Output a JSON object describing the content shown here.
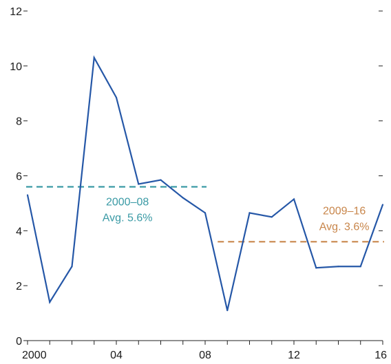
{
  "chart_data": {
    "type": "line",
    "title": "",
    "xlabel": "",
    "ylabel": "",
    "ylim": [
      0,
      12
    ],
    "xlim": [
      2000,
      2016
    ],
    "y_ticks": [
      0,
      2,
      4,
      6,
      8,
      10,
      12
    ],
    "y_tick_labels": [
      "0",
      "2",
      "4",
      "6",
      "8",
      "10",
      "12"
    ],
    "x_ticks": [
      2000,
      2004,
      2008,
      2012,
      2016
    ],
    "x_tick_labels": [
      "2000",
      "04",
      "08",
      "12",
      "16"
    ],
    "grid": false,
    "series": [
      {
        "x": [
          2000,
          2001,
          2002,
          2003,
          2004,
          2005,
          2006,
          2007,
          2008,
          2009,
          2010,
          2011,
          2012,
          2013,
          2014,
          2015,
          2016
        ],
        "values": [
          5.3,
          1.4,
          2.7,
          10.3,
          8.85,
          5.7,
          5.85,
          5.2,
          4.65,
          1.1,
          4.65,
          4.5,
          5.15,
          2.65,
          2.7,
          2.7,
          4.95
        ],
        "color": "#2557a7"
      }
    ],
    "averages": [
      {
        "period_label": "2000–08",
        "avg_label": "Avg. 5.6%",
        "value": 5.6,
        "x_start": 2000,
        "x_end": 2008,
        "color": "#3a9aa5"
      },
      {
        "period_label": "2009–16",
        "avg_label": "Avg. 3.6%",
        "value": 3.6,
        "x_start": 2009,
        "x_end": 2016,
        "color": "#c8864b"
      }
    ]
  }
}
